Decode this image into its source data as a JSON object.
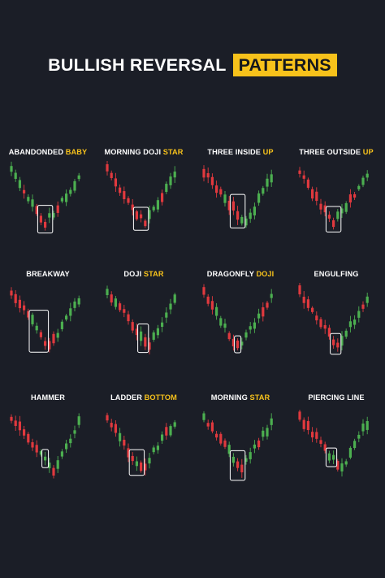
{
  "title": {
    "main": "BULLISH REVERSAL",
    "accent": "PATTERNS"
  },
  "colors": {
    "background": "#1b1e27",
    "bullish": "#4caf50",
    "bearish": "#e0393e",
    "accent": "#f7c21b",
    "highlight_box": "#ffffff"
  },
  "patterns": [
    {
      "label_white": "ABANDONDED ",
      "label_yellow": "BABY"
    },
    {
      "label_white": "MORNING DOJI ",
      "label_yellow": "STAR"
    },
    {
      "label_white": "THREE INSIDE ",
      "label_yellow": "UP"
    },
    {
      "label_white": "THREE OUTSIDE ",
      "label_yellow": "UP"
    },
    {
      "label_white": "BREAKWAY",
      "label_yellow": ""
    },
    {
      "label_white": "DOJI ",
      "label_yellow": "STAR"
    },
    {
      "label_white": "DRAGONFLY ",
      "label_yellow": "DOJI"
    },
    {
      "label_white": "ENGULFING",
      "label_yellow": ""
    },
    {
      "label_white": "HAMMER",
      "label_yellow": ""
    },
    {
      "label_white": "LADDER ",
      "label_yellow": "BOTTOM"
    },
    {
      "label_white": "MORNING ",
      "label_yellow": "STAR"
    },
    {
      "label_white": "PIERCING LINE",
      "label_yellow": ""
    }
  ]
}
